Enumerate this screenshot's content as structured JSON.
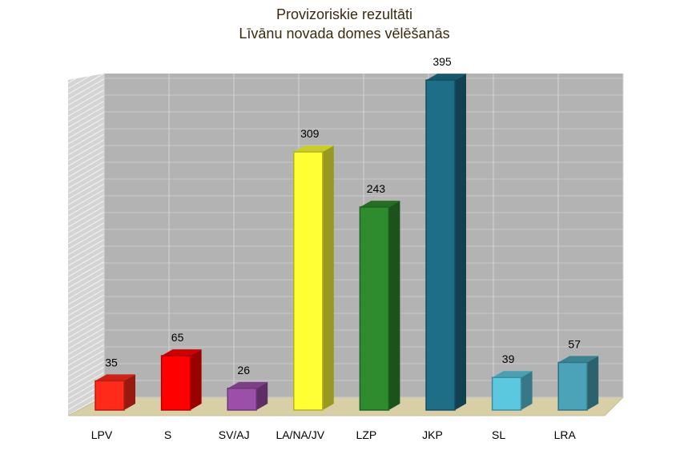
{
  "chart_data": {
    "type": "bar3d",
    "title": "Provizoriskie rezultāti",
    "subtitle": "Līvānu novada domes vēlēšanās",
    "categories": [
      "LPV",
      "S",
      "SV/AJ",
      "LA/NA/JV",
      "LZP",
      "JKP",
      "SL",
      "LRA"
    ],
    "values": [
      35,
      65,
      26,
      309,
      243,
      395,
      39,
      57
    ],
    "colors": [
      "#ff2a1a",
      "#ff0000",
      "#9b4fa8",
      "#ffff33",
      "#2e8b2e",
      "#1e6e88",
      "#5bc8e0",
      "#4aa3b8"
    ],
    "ylim": [
      0,
      400
    ],
    "grid": true
  }
}
